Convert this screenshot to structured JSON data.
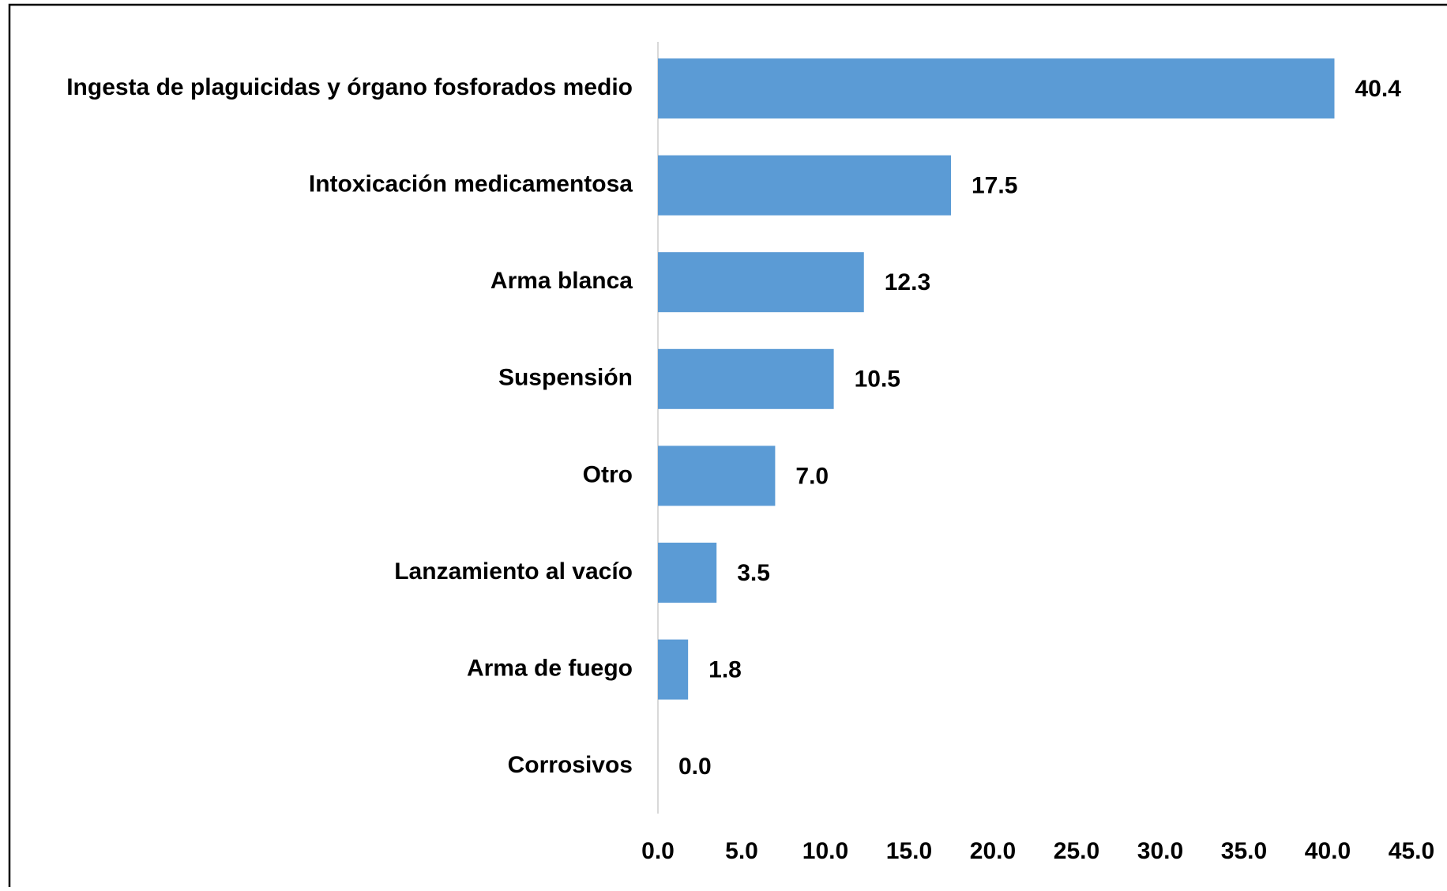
{
  "chart_data": {
    "type": "barh",
    "categories": [
      "Ingesta de plaguicidas y órgano fosforados medio",
      "Intoxicación medicamentosa",
      "Arma blanca",
      "Suspensión",
      "Otro",
      "Lanzamiento al vacío",
      "Arma de fuego",
      "Corrosivos"
    ],
    "values": [
      40.4,
      17.5,
      12.3,
      10.5,
      7.0,
      3.5,
      1.8,
      0.0
    ],
    "value_labels": [
      "40.4",
      "17.5",
      "12.3",
      "10.5",
      "7.0",
      "3.5",
      "1.8",
      "0.0"
    ],
    "color": "#5b9bd5",
    "xlim": [
      0,
      45
    ],
    "xticks": [
      {
        "value": 0,
        "label": "0.0"
      },
      {
        "value": 5,
        "label": "5.0"
      },
      {
        "value": 10,
        "label": "10.0"
      },
      {
        "value": 15,
        "label": "15.0"
      },
      {
        "value": 20,
        "label": "20.0"
      },
      {
        "value": 25,
        "label": "25.0"
      },
      {
        "value": 30,
        "label": "30.0"
      },
      {
        "value": 35,
        "label": "35.0"
      },
      {
        "value": 40,
        "label": "40.0"
      },
      {
        "value": 45,
        "label": "45.0"
      }
    ],
    "grid": false
  }
}
